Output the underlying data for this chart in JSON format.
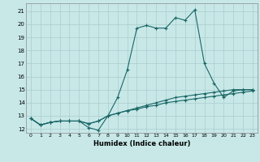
{
  "xlabel": "Humidex (Indice chaleur)",
  "ylabel": "",
  "bg_color": "#c8e8e8",
  "grid_color": "#aacccc",
  "line_color": "#1a6666",
  "xlim": [
    -0.5,
    23.5
  ],
  "ylim": [
    11.7,
    21.6
  ],
  "yticks": [
    12,
    13,
    14,
    15,
    16,
    17,
    18,
    19,
    20,
    21
  ],
  "xticks": [
    0,
    1,
    2,
    3,
    4,
    5,
    6,
    7,
    8,
    9,
    10,
    11,
    12,
    13,
    14,
    15,
    16,
    17,
    18,
    19,
    20,
    21,
    22,
    23
  ],
  "series1_x": [
    0,
    1,
    2,
    3,
    4,
    5,
    6,
    7,
    8,
    9,
    10,
    11,
    12,
    13,
    14,
    15,
    16,
    17,
    18,
    19,
    20,
    21,
    22,
    23
  ],
  "series1_y": [
    12.8,
    12.3,
    12.5,
    12.6,
    12.6,
    12.6,
    12.1,
    11.9,
    13.0,
    14.4,
    16.5,
    19.7,
    19.9,
    19.7,
    19.7,
    20.5,
    20.3,
    21.1,
    17.0,
    15.5,
    14.4,
    14.9,
    15.0,
    15.0
  ],
  "series2_x": [
    0,
    1,
    2,
    3,
    4,
    5,
    6,
    7,
    8,
    9,
    10,
    11,
    12,
    13,
    14,
    15,
    16,
    17,
    18,
    19,
    20,
    21,
    22,
    23
  ],
  "series2_y": [
    12.8,
    12.3,
    12.5,
    12.6,
    12.6,
    12.6,
    12.4,
    12.6,
    13.0,
    13.2,
    13.4,
    13.6,
    13.8,
    14.0,
    14.2,
    14.4,
    14.5,
    14.6,
    14.7,
    14.8,
    14.9,
    15.0,
    15.0,
    15.0
  ],
  "series3_x": [
    0,
    1,
    2,
    3,
    4,
    5,
    6,
    7,
    8,
    9,
    10,
    11,
    12,
    13,
    14,
    15,
    16,
    17,
    18,
    19,
    20,
    21,
    22,
    23
  ],
  "series3_y": [
    12.8,
    12.3,
    12.5,
    12.6,
    12.6,
    12.6,
    12.4,
    12.6,
    13.0,
    13.2,
    13.4,
    13.5,
    13.7,
    13.8,
    14.0,
    14.1,
    14.2,
    14.3,
    14.4,
    14.5,
    14.6,
    14.7,
    14.8,
    14.9
  ]
}
